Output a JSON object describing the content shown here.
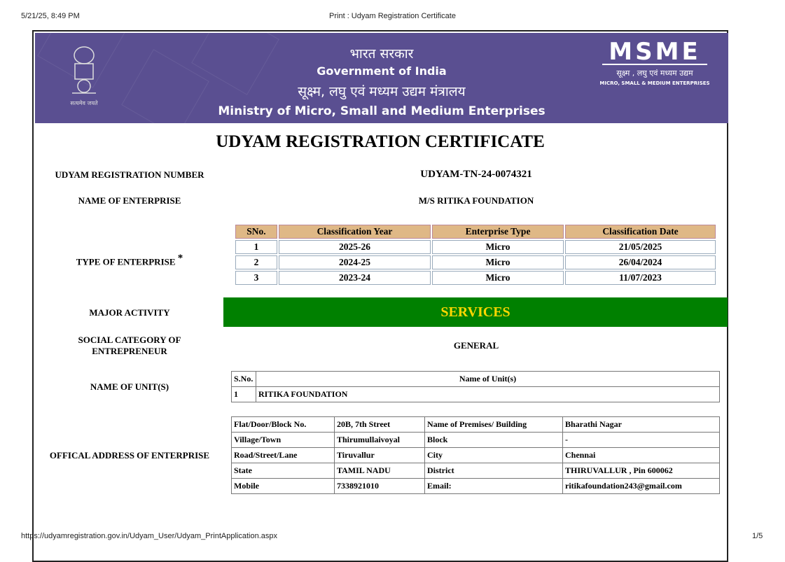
{
  "print_header": {
    "datetime": "5/21/25, 8:49 PM",
    "title": "Print : Udyam Registration Certificate"
  },
  "print_footer": {
    "url": "https://udyamregistration.gov.in/Udyam_User/Udyam_PrintApplication.aspx",
    "page": "1/5"
  },
  "banner": {
    "hindi_gov": "भारत सरकार",
    "gov": "Government of India",
    "hindi_ministry": "सूक्ष्म, लघु एवं मध्यम उद्यम मंत्रालय",
    "ministry": "Ministry of Micro, Small and Medium Enterprises",
    "emblem_motto": "सत्यमेव जयते",
    "logo_text": "MSME",
    "logo_hindi": "सूक्ष्म , लघु एवं मध्यम उद्यम",
    "logo_sub": "MICRO, SMALL & MEDIUM ENTERPRISES",
    "color": "#5a4f91"
  },
  "title": "UDYAM REGISTRATION CERTIFICATE",
  "reg_number": {
    "label": "UDYAM REGISTRATION NUMBER",
    "value": "UDYAM-TN-24-0074321"
  },
  "enterprise_name": {
    "label": "NAME OF ENTERPRISE",
    "value": "M/S RITIKA FOUNDATION"
  },
  "type": {
    "label": "TYPE OF ENTERPRISE",
    "mark": "*",
    "headers": [
      "SNo.",
      "Classification Year",
      "Enterprise Type",
      "Classification Date"
    ],
    "rows": [
      [
        "1",
        "2025-26",
        "Micro",
        "21/05/2025"
      ],
      [
        "2",
        "2024-25",
        "Micro",
        "26/04/2024"
      ],
      [
        "3",
        "2023-24",
        "Micro",
        "11/07/2023"
      ]
    ]
  },
  "major_activity": {
    "label": "MAJOR ACTIVITY",
    "value": "SERVICES",
    "bg": "#008000",
    "fg": "#ffd700"
  },
  "social_category": {
    "label": "SOCIAL CATEGORY OF ENTREPRENEUR",
    "value": "GENERAL"
  },
  "units": {
    "label": "NAME OF UNIT(S)",
    "headers": [
      "S.No.",
      "Name of Unit(s)"
    ],
    "rows": [
      [
        "1",
        "RITIKA FOUNDATION"
      ]
    ]
  },
  "address": {
    "label": "OFFICAL ADDRESS OF ENTERPRISE",
    "rows": [
      [
        "Flat/Door/Block No.",
        "20B, 7th Street",
        "Name of Premises/ Building",
        "Bharathi Nagar"
      ],
      [
        "Village/Town",
        "Thirumullaivoyal",
        "Block",
        "-"
      ],
      [
        "Road/Street/Lane",
        "Tiruvallur",
        "City",
        "Chennai"
      ],
      [
        "State",
        "TAMIL NADU",
        "District",
        "THIRUVALLUR , Pin 600062"
      ],
      [
        "Mobile",
        "7338921010",
        "Email:",
        "ritikafoundation243@gmail.com"
      ]
    ]
  }
}
